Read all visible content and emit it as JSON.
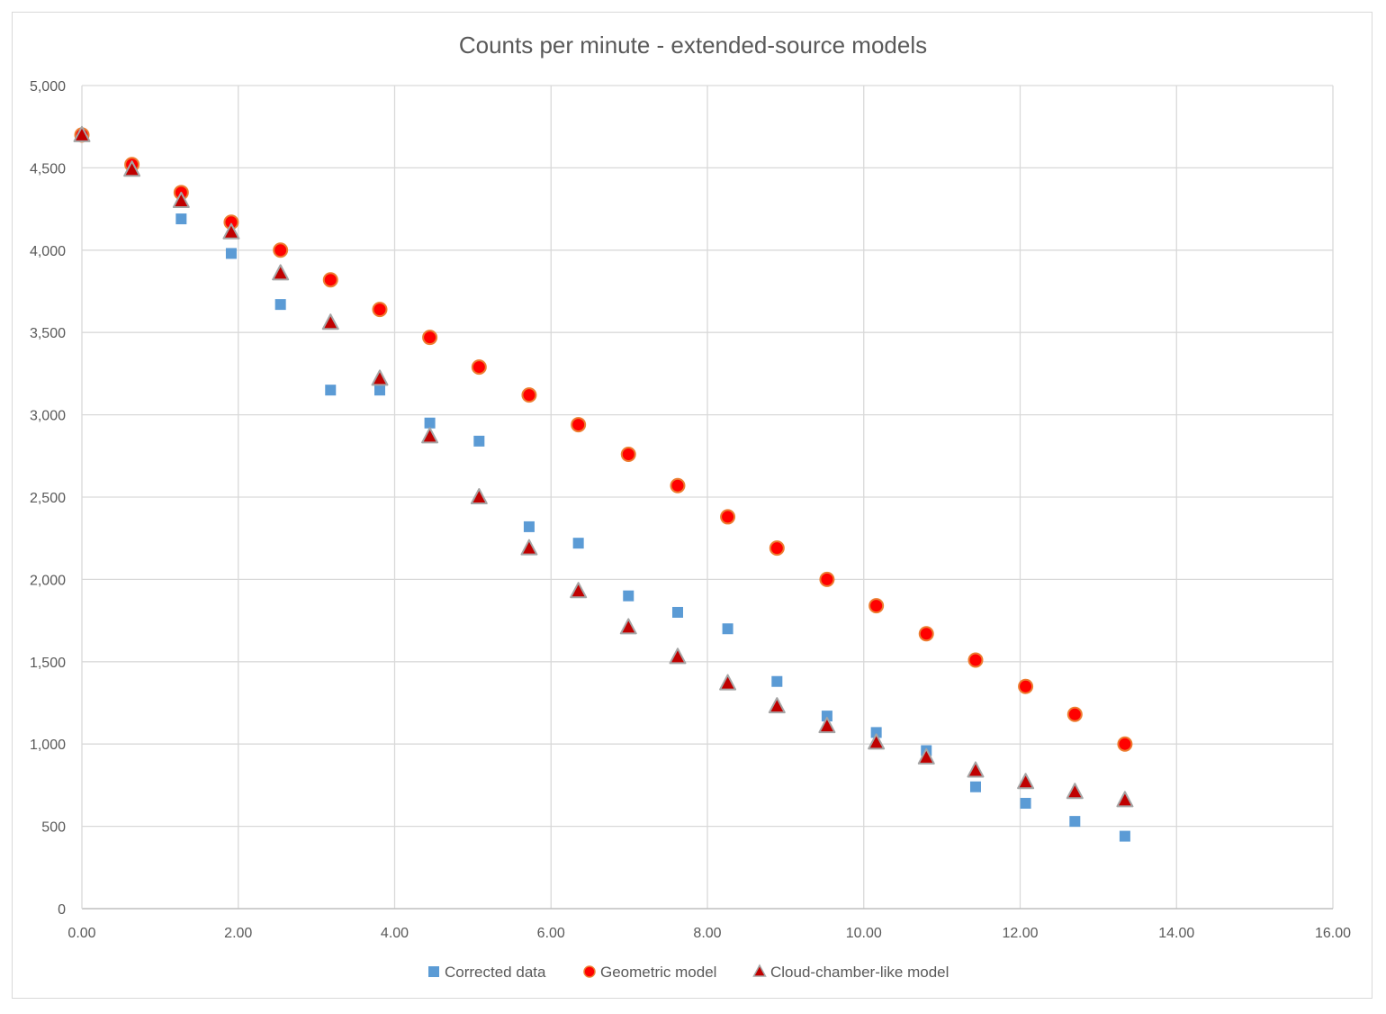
{
  "chart_data": {
    "type": "scatter",
    "title": "Counts per minute - extended-source models",
    "xlabel": "",
    "ylabel": "",
    "xlim": [
      0,
      16
    ],
    "ylim": [
      0,
      5000
    ],
    "x_ticks": [
      0,
      2,
      4,
      6,
      8,
      10,
      12,
      14,
      16
    ],
    "x_tick_labels": [
      "0.00",
      "2.00",
      "4.00",
      "6.00",
      "8.00",
      "10.00",
      "12.00",
      "14.00",
      "16.00"
    ],
    "y_ticks": [
      0,
      500,
      1000,
      1500,
      2000,
      2500,
      3000,
      3500,
      4000,
      4500,
      5000
    ],
    "y_tick_labels": [
      "0",
      "500",
      "1,000",
      "1,500",
      "2,000",
      "2,500",
      "3,000",
      "3,500",
      "4,000",
      "4,500",
      "5,000"
    ],
    "grid": true,
    "legend_position": "bottom",
    "series": [
      {
        "name": "Corrected data",
        "marker": "square",
        "color": "#5b9bd5",
        "x": [
          0.0,
          0.64,
          1.27,
          1.91,
          2.54,
          3.18,
          3.81,
          4.45,
          5.08,
          5.72,
          6.35,
          6.99,
          7.62,
          8.26,
          8.89,
          9.53,
          10.16,
          10.8,
          11.43,
          12.07,
          12.7,
          13.34
        ],
        "y": [
          4700,
          4500,
          4190,
          3980,
          3670,
          3150,
          3150,
          2950,
          2840,
          2320,
          2220,
          1900,
          1800,
          1700,
          1380,
          1170,
          1070,
          960,
          740,
          640,
          530,
          440
        ]
      },
      {
        "name": "Geometric model",
        "marker": "circle",
        "color": "#ff0000",
        "edge_color": "#ed7d31",
        "x": [
          0.0,
          0.64,
          1.27,
          1.91,
          2.54,
          3.18,
          3.81,
          4.45,
          5.08,
          5.72,
          6.35,
          6.99,
          7.62,
          8.26,
          8.89,
          9.53,
          10.16,
          10.8,
          11.43,
          12.07,
          12.7,
          13.34
        ],
        "y": [
          4700,
          4520,
          4350,
          4170,
          4000,
          3820,
          3640,
          3470,
          3290,
          3120,
          2940,
          2760,
          2570,
          2380,
          2190,
          2000,
          1840,
          1670,
          1510,
          1350,
          1180,
          1000
        ]
      },
      {
        "name": "Cloud-chamber-like model",
        "marker": "triangle",
        "color": "#c00000",
        "edge_color": "#a5a5a5",
        "x": [
          0.0,
          0.64,
          1.27,
          1.91,
          2.54,
          3.18,
          3.81,
          4.45,
          5.08,
          5.72,
          6.35,
          6.99,
          7.62,
          8.26,
          8.89,
          9.53,
          10.16,
          10.8,
          11.43,
          12.07,
          12.7,
          13.34
        ],
        "y": [
          4700,
          4490,
          4300,
          4110,
          3860,
          3560,
          3220,
          2870,
          2500,
          2190,
          1930,
          1710,
          1530,
          1370,
          1230,
          1110,
          1010,
          920,
          840,
          770,
          710,
          660
        ]
      }
    ]
  }
}
